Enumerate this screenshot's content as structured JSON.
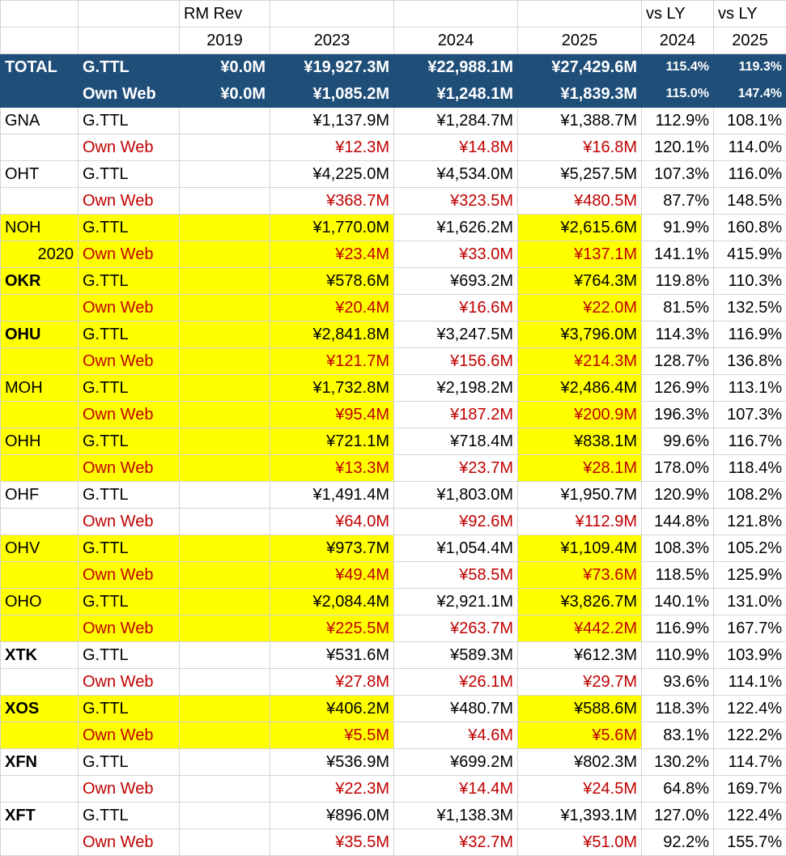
{
  "header": {
    "title": "RM Rev",
    "vs_ly_1": "vs LY",
    "vs_ly_2": "vs LY",
    "years": [
      "2019",
      "2023",
      "2024",
      "2025"
    ],
    "vs_years": [
      "2024",
      "2025"
    ]
  },
  "total": {
    "code": "TOTAL",
    "gttl": {
      "label": "G.TTL",
      "v2019": "¥0.0M",
      "v2023": "¥19,927.3M",
      "v2024": "¥22,988.1M",
      "v2025": "¥27,429.6M",
      "p2024": "115.4%",
      "p2025": "119.3%"
    },
    "web": {
      "label": "Own Web",
      "v2019": "¥0.0M",
      "v2023": "¥1,085.2M",
      "v2024": "¥1,248.1M",
      "v2025": "¥1,839.3M",
      "p2024": "115.0%",
      "p2025": "147.4%"
    }
  },
  "rows": [
    {
      "code": "GNA",
      "gttl": {
        "label": "G.TTL",
        "v2023": "¥1,137.9M",
        "v2024": "¥1,284.7M",
        "v2025": "¥1,388.7M",
        "p2024": "112.9%",
        "p2025": "108.1%"
      },
      "web": {
        "label": "Own Web",
        "v2023": "¥12.3M",
        "v2024": "¥14.8M",
        "v2025": "¥16.8M",
        "p2024": "120.1%",
        "p2025": "114.0%"
      }
    },
    {
      "code": "OHT",
      "gttl": {
        "label": "G.TTL",
        "v2023": "¥4,225.0M",
        "v2024": "¥4,534.0M",
        "v2025": "¥5,257.5M",
        "p2024": "107.3%",
        "p2025": "116.0%"
      },
      "web": {
        "label": "Own Web",
        "v2023": "¥368.7M",
        "v2024": "¥323.5M",
        "v2025": "¥480.5M",
        "p2024": "87.7%",
        "p2025": "148.5%"
      }
    },
    {
      "code": "NOH",
      "note": "2020",
      "gttl": {
        "label": "G.TTL",
        "v2023": "¥1,770.0M",
        "v2024": "¥1,626.2M",
        "v2025": "¥2,615.6M",
        "p2024": "91.9%",
        "p2025": "160.8%"
      },
      "web": {
        "label": "Own Web",
        "v2023": "¥23.4M",
        "v2024": "¥33.0M",
        "v2025": "¥137.1M",
        "p2024": "141.1%",
        "p2025": "415.9%"
      }
    },
    {
      "code": "OKR",
      "gttl": {
        "label": "G.TTL",
        "v2023": "¥578.6M",
        "v2024": "¥693.2M",
        "v2025": "¥764.3M",
        "p2024": "119.8%",
        "p2025": "110.3%"
      },
      "web": {
        "label": "Own Web",
        "v2023": "¥20.4M",
        "v2024": "¥16.6M",
        "v2025": "¥22.0M",
        "p2024": "81.5%",
        "p2025": "132.5%"
      }
    },
    {
      "code": "OHU",
      "gttl": {
        "label": "G.TTL",
        "v2023": "¥2,841.8M",
        "v2024": "¥3,247.5M",
        "v2025": "¥3,796.0M",
        "p2024": "114.3%",
        "p2025": "116.9%"
      },
      "web": {
        "label": "Own Web",
        "v2023": "¥121.7M",
        "v2024": "¥156.6M",
        "v2025": "¥214.3M",
        "p2024": "128.7%",
        "p2025": "136.8%"
      }
    },
    {
      "code": "MOH",
      "gttl": {
        "label": "G.TTL",
        "v2023": "¥1,732.8M",
        "v2024": "¥2,198.2M",
        "v2025": "¥2,486.4M",
        "p2024": "126.9%",
        "p2025": "113.1%"
      },
      "web": {
        "label": "Own Web",
        "v2023": "¥95.4M",
        "v2024": "¥187.2M",
        "v2025": "¥200.9M",
        "p2024": "196.3%",
        "p2025": "107.3%"
      }
    },
    {
      "code": "OHH",
      "gttl": {
        "label": "G.TTL",
        "v2023": "¥721.1M",
        "v2024": "¥718.4M",
        "v2025": "¥838.1M",
        "p2024": "99.6%",
        "p2025": "116.7%"
      },
      "web": {
        "label": "Own Web",
        "v2023": "¥13.3M",
        "v2024": "¥23.7M",
        "v2025": "¥28.1M",
        "p2024": "178.0%",
        "p2025": "118.4%"
      }
    },
    {
      "code": "OHF",
      "gttl": {
        "label": "G.TTL",
        "v2023": "¥1,491.4M",
        "v2024": "¥1,803.0M",
        "v2025": "¥1,950.7M",
        "p2024": "120.9%",
        "p2025": "108.2%"
      },
      "web": {
        "label": "Own Web",
        "v2023": "¥64.0M",
        "v2024": "¥92.6M",
        "v2025": "¥112.9M",
        "p2024": "144.8%",
        "p2025": "121.8%"
      }
    },
    {
      "code": "OHV",
      "gttl": {
        "label": "G.TTL",
        "v2023": "¥973.7M",
        "v2024": "¥1,054.4M",
        "v2025": "¥1,109.4M",
        "p2024": "108.3%",
        "p2025": "105.2%"
      },
      "web": {
        "label": "Own Web",
        "v2023": "¥49.4M",
        "v2024": "¥58.5M",
        "v2025": "¥73.6M",
        "p2024": "118.5%",
        "p2025": "125.9%"
      }
    },
    {
      "code": "OHO",
      "gttl": {
        "label": "G.TTL",
        "v2023": "¥2,084.4M",
        "v2024": "¥2,921.1M",
        "v2025": "¥3,826.7M",
        "p2024": "140.1%",
        "p2025": "131.0%"
      },
      "web": {
        "label": "Own Web",
        "v2023": "¥225.5M",
        "v2024": "¥263.7M",
        "v2025": "¥442.2M",
        "p2024": "116.9%",
        "p2025": "167.7%"
      }
    },
    {
      "code": "XTK",
      "gttl": {
        "label": "G.TTL",
        "v2023": "¥531.6M",
        "v2024": "¥589.3M",
        "v2025": "¥612.3M",
        "p2024": "110.9%",
        "p2025": "103.9%"
      },
      "web": {
        "label": "Own Web",
        "v2023": "¥27.8M",
        "v2024": "¥26.1M",
        "v2025": "¥29.7M",
        "p2024": "93.6%",
        "p2025": "114.1%"
      }
    },
    {
      "code": "XOS",
      "gttl": {
        "label": "G.TTL",
        "v2023": "¥406.2M",
        "v2024": "¥480.7M",
        "v2025": "¥588.6M",
        "p2024": "118.3%",
        "p2025": "122.4%"
      },
      "web": {
        "label": "Own Web",
        "v2023": "¥5.5M",
        "v2024": "¥4.6M",
        "v2025": "¥5.6M",
        "p2024": "83.1%",
        "p2025": "122.2%"
      }
    },
    {
      "code": "XFN",
      "gttl": {
        "label": "G.TTL",
        "v2023": "¥536.9M",
        "v2024": "¥699.2M",
        "v2025": "¥802.3M",
        "p2024": "130.2%",
        "p2025": "114.7%"
      },
      "web": {
        "label": "Own Web",
        "v2023": "¥22.3M",
        "v2024": "¥14.4M",
        "v2025": "¥24.5M",
        "p2024": "64.8%",
        "p2025": "169.7%"
      }
    },
    {
      "code": "XFT",
      "gttl": {
        "label": "G.TTL",
        "v2023": "¥896.0M",
        "v2024": "¥1,138.3M",
        "v2025": "¥1,393.1M",
        "p2024": "127.0%",
        "p2025": "122.4%"
      },
      "web": {
        "label": "Own Web",
        "v2023": "¥35.5M",
        "v2024": "¥32.7M",
        "v2025": "¥51.0M",
        "p2024": "92.2%",
        "p2025": "155.7%"
      }
    }
  ],
  "colors": {
    "header_bg": "#1f4e79",
    "highlight": "#ffff00",
    "own_web_text": "#c00000",
    "pct_blue": "#5b8cc4"
  }
}
